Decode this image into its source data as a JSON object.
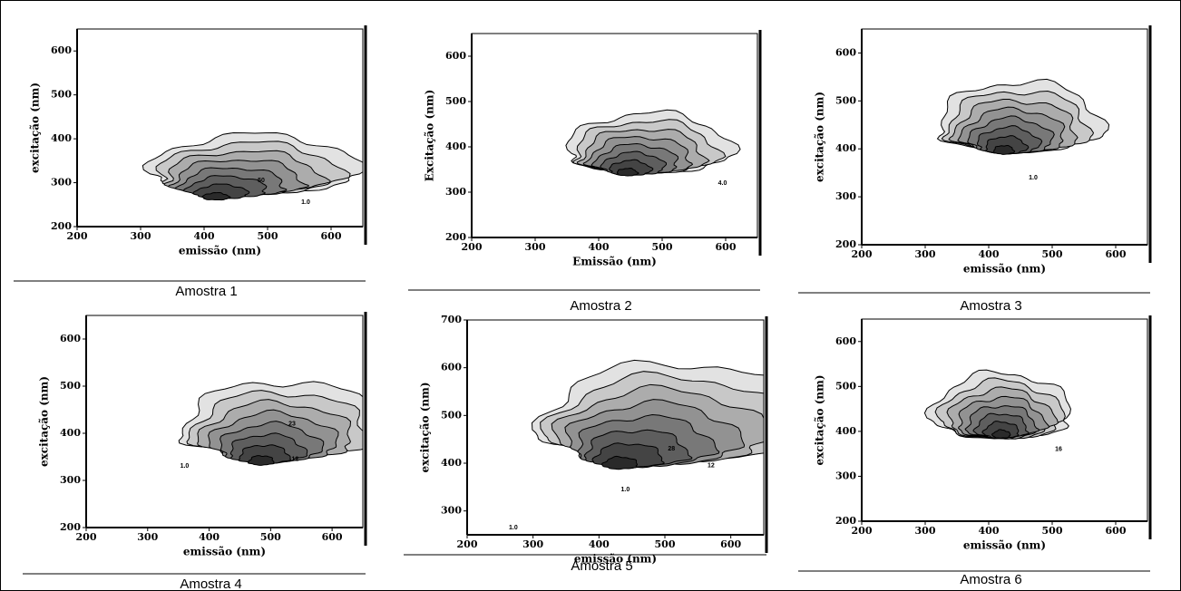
{
  "chart_data": [
    {
      "type": "contour",
      "title": "Amostra 1",
      "x_label": "emissão (nm)",
      "y_label": "excitação (nm)",
      "xlim": [
        200,
        650
      ],
      "ylim": [
        200,
        650
      ],
      "xticks": [
        200,
        300,
        400,
        500,
        600
      ],
      "yticks": [
        200,
        300,
        400,
        500,
        600
      ],
      "contour_labels": [
        "50",
        "1.0"
      ]
    },
    {
      "type": "contour",
      "title": "Amostra 2",
      "x_label": "Emissão (nm)",
      "y_label": "Excitação (nm)",
      "xlim": [
        200,
        650
      ],
      "ylim": [
        200,
        650
      ],
      "xticks": [
        200,
        300,
        400,
        500,
        600
      ],
      "yticks": [
        200,
        300,
        400,
        500,
        600
      ],
      "contour_labels": [
        "4.0"
      ]
    },
    {
      "type": "contour",
      "title": "Amostra 3",
      "x_label": "emissão (nm)",
      "y_label": "excitação (nm)",
      "xlim": [
        200,
        650
      ],
      "ylim": [
        200,
        650
      ],
      "xticks": [
        200,
        300,
        400,
        500,
        600
      ],
      "yticks": [
        200,
        300,
        400,
        500,
        600
      ],
      "contour_labels": [
        "1.0"
      ]
    },
    {
      "type": "contour",
      "title": "Amostra 4",
      "x_label": "emissão (nm)",
      "y_label": "excitação (nm)",
      "xlim": [
        200,
        650
      ],
      "ylim": [
        200,
        650
      ],
      "xticks": [
        200,
        300,
        400,
        500,
        600
      ],
      "yticks": [
        200,
        300,
        400,
        500,
        600
      ],
      "contour_labels": [
        "1.0",
        "23",
        "12"
      ]
    },
    {
      "type": "contour",
      "title": "Amostra 5",
      "x_label": "emissão (nm)",
      "y_label": "excitação (nm)",
      "xlim": [
        200,
        650
      ],
      "ylim": [
        250,
        700
      ],
      "xticks": [
        200,
        300,
        400,
        500,
        600
      ],
      "yticks": [
        300,
        400,
        500,
        600,
        700
      ],
      "contour_labels": [
        "1.0",
        "28",
        "12",
        "1.0"
      ]
    },
    {
      "type": "contour",
      "title": "Amostra 6",
      "x_label": "emissão (nm)",
      "y_label": "excitação (nm)",
      "xlim": [
        200,
        650
      ],
      "ylim": [
        200,
        650
      ],
      "xticks": [
        200,
        300,
        400,
        500,
        600
      ],
      "yticks": [
        200,
        300,
        400,
        500,
        600
      ],
      "contour_labels": [
        "16"
      ]
    }
  ]
}
